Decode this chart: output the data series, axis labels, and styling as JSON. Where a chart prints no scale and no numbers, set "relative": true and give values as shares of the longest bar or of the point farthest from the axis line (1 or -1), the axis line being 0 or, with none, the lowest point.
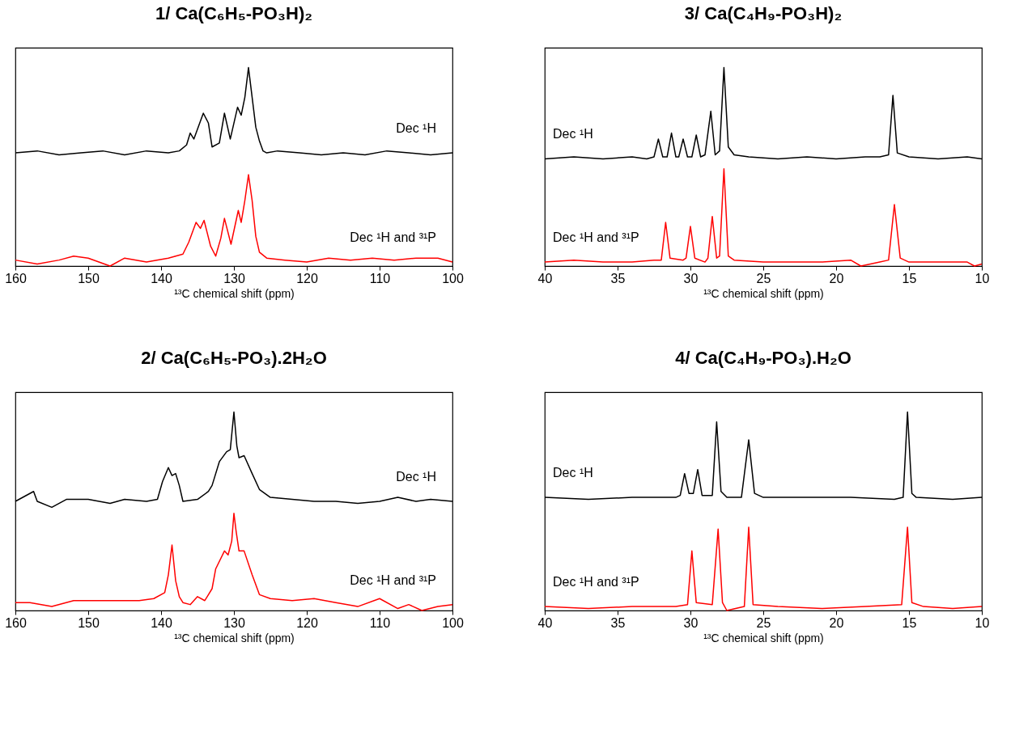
{
  "chart_data": [
    {
      "type": "line",
      "title": "1/ Ca(C₆H₅-PO₃H)₂",
      "xlabel": "¹³C chemical shift (ppm)",
      "xlim": [
        160,
        100
      ],
      "xticks": [
        160,
        150,
        140,
        130,
        120,
        110,
        100
      ],
      "relative": true,
      "series": [
        {
          "name": "Dec ¹H",
          "color": "#000000",
          "x": [
            160,
            157,
            154,
            151,
            148,
            145,
            142,
            139,
            137.5,
            136.5,
            136,
            135.5,
            134.2,
            133.5,
            133,
            132,
            131.3,
            130.5,
            129.5,
            129,
            128.5,
            128,
            127.5,
            127,
            126.5,
            126,
            125.5,
            124,
            121,
            118,
            115,
            112,
            109,
            106,
            103,
            100
          ],
          "values": [
            0.57,
            0.58,
            0.56,
            0.57,
            0.58,
            0.56,
            0.58,
            0.57,
            0.58,
            0.61,
            0.67,
            0.64,
            0.77,
            0.72,
            0.6,
            0.62,
            0.77,
            0.64,
            0.8,
            0.76,
            0.85,
            1.0,
            0.85,
            0.7,
            0.63,
            0.58,
            0.57,
            0.58,
            0.57,
            0.56,
            0.57,
            0.56,
            0.58,
            0.57,
            0.56,
            0.57
          ]
        },
        {
          "name": "Dec ¹H and ³¹P",
          "color": "#ff0000",
          "x": [
            160,
            157,
            154,
            152,
            150,
            147,
            145,
            142,
            139,
            137,
            136.2,
            135.2,
            134.6,
            134.1,
            133.2,
            132.5,
            131.8,
            131.3,
            130.4,
            129.4,
            129,
            128.5,
            128,
            127.5,
            127,
            126.5,
            125.5,
            123,
            120,
            117,
            114,
            111,
            108,
            105,
            102,
            100
          ],
          "values": [
            0.03,
            0.01,
            0.03,
            0.05,
            0.04,
            0.0,
            0.04,
            0.02,
            0.04,
            0.06,
            0.12,
            0.22,
            0.19,
            0.23,
            0.1,
            0.05,
            0.14,
            0.24,
            0.11,
            0.28,
            0.22,
            0.33,
            0.46,
            0.33,
            0.15,
            0.07,
            0.04,
            0.03,
            0.02,
            0.04,
            0.03,
            0.04,
            0.03,
            0.04,
            0.04,
            0.02
          ]
        }
      ]
    },
    {
      "type": "line",
      "title": "3/ Ca(C₄H₉-PO₃H)₂",
      "xlabel": "¹³C chemical shift (ppm)",
      "xlim": [
        40,
        10
      ],
      "xticks": [
        40,
        35,
        30,
        25,
        20,
        15,
        10
      ],
      "relative": true,
      "series": [
        {
          "name": "Dec ¹H",
          "color": "#000000",
          "x": [
            40,
            38,
            36,
            34,
            33,
            32.5,
            32.2,
            31.9,
            31.6,
            31.3,
            31.0,
            30.8,
            30.5,
            30.2,
            29.9,
            29.6,
            29.3,
            29.0,
            28.6,
            28.3,
            28.0,
            27.7,
            27.4,
            27.0,
            26,
            24,
            22,
            20,
            18,
            17,
            16.4,
            16.1,
            15.8,
            15,
            13,
            11,
            10
          ],
          "values": [
            0.54,
            0.55,
            0.54,
            0.55,
            0.54,
            0.55,
            0.64,
            0.55,
            0.55,
            0.67,
            0.55,
            0.55,
            0.64,
            0.55,
            0.55,
            0.66,
            0.55,
            0.56,
            0.78,
            0.56,
            0.58,
            1.0,
            0.6,
            0.56,
            0.55,
            0.54,
            0.55,
            0.54,
            0.55,
            0.55,
            0.56,
            0.86,
            0.57,
            0.55,
            0.54,
            0.55,
            0.54
          ]
        },
        {
          "name": "Dec ¹H and ³¹P",
          "color": "#ff0000",
          "x": [
            40,
            38,
            36,
            34,
            32.5,
            32.0,
            31.7,
            31.4,
            30.5,
            30.3,
            30.0,
            29.7,
            29.0,
            28.8,
            28.5,
            28.2,
            28.0,
            27.7,
            27.4,
            27.0,
            25,
            23,
            21,
            19,
            18.3,
            17,
            16.4,
            16.0,
            15.6,
            15,
            13,
            11,
            10.5,
            10
          ],
          "values": [
            0.02,
            0.03,
            0.02,
            0.02,
            0.03,
            0.03,
            0.22,
            0.04,
            0.03,
            0.04,
            0.2,
            0.04,
            0.02,
            0.04,
            0.25,
            0.04,
            0.05,
            0.49,
            0.05,
            0.03,
            0.02,
            0.02,
            0.02,
            0.03,
            0.0,
            0.02,
            0.03,
            0.31,
            0.04,
            0.02,
            0.02,
            0.02,
            0.0,
            0.01
          ]
        }
      ]
    },
    {
      "type": "line",
      "title": "2/ Ca(C₆H₅-PO₃).2H₂O",
      "xlabel": "¹³C chemical shift (ppm)",
      "xlim": [
        160,
        100
      ],
      "xticks": [
        160,
        150,
        140,
        130,
        120,
        110,
        100
      ],
      "relative": true,
      "series": [
        {
          "name": "Dec ¹H",
          "color": "#000000",
          "x": [
            160,
            157.5,
            157,
            155,
            153,
            150,
            147,
            145,
            142,
            140.5,
            139.8,
            139,
            138.5,
            138,
            137.5,
            137,
            135,
            133.5,
            133,
            132,
            131,
            130.5,
            130,
            129.6,
            129.3,
            128.6,
            127.5,
            126.5,
            125,
            122,
            119,
            116,
            113,
            110,
            107.5,
            105,
            103,
            100
          ],
          "values": [
            0.55,
            0.6,
            0.55,
            0.52,
            0.56,
            0.56,
            0.54,
            0.56,
            0.55,
            0.56,
            0.65,
            0.72,
            0.68,
            0.69,
            0.63,
            0.55,
            0.56,
            0.6,
            0.63,
            0.75,
            0.8,
            0.81,
            1.0,
            0.83,
            0.77,
            0.78,
            0.69,
            0.61,
            0.57,
            0.56,
            0.55,
            0.55,
            0.54,
            0.55,
            0.57,
            0.55,
            0.56,
            0.55
          ]
        },
        {
          "name": "Dec ¹H and ³¹P",
          "color": "#ff0000",
          "x": [
            160,
            158,
            155,
            152,
            149,
            146,
            143,
            141,
            139.5,
            139,
            138.5,
            138,
            137.5,
            137,
            136,
            135,
            134,
            133,
            132.5,
            131.3,
            130.8,
            130.3,
            130,
            129.7,
            129.3,
            128.6,
            127.5,
            126.5,
            125,
            122,
            119,
            116,
            113,
            110,
            107.5,
            106,
            104.2,
            102,
            100
          ],
          "values": [
            0.04,
            0.04,
            0.02,
            0.05,
            0.05,
            0.05,
            0.05,
            0.06,
            0.09,
            0.18,
            0.33,
            0.15,
            0.07,
            0.04,
            0.03,
            0.07,
            0.05,
            0.11,
            0.21,
            0.3,
            0.28,
            0.35,
            0.49,
            0.4,
            0.3,
            0.3,
            0.18,
            0.08,
            0.06,
            0.05,
            0.06,
            0.04,
            0.02,
            0.06,
            0.01,
            0.03,
            0.0,
            0.02,
            0.03
          ]
        }
      ]
    },
    {
      "type": "line",
      "title": "4/ Ca(C₄H₉-PO₃).H₂O",
      "xlabel": "¹³C chemical shift (ppm)",
      "xlim": [
        40,
        10
      ],
      "xticks": [
        40,
        35,
        30,
        25,
        20,
        15,
        10
      ],
      "relative": true,
      "series": [
        {
          "name": "Dec ¹H",
          "color": "#000000",
          "x": [
            40,
            37,
            34,
            31,
            30.7,
            30.4,
            30.1,
            29.8,
            29.5,
            29.2,
            28.5,
            28.2,
            27.9,
            27.5,
            26.5,
            26.0,
            25.6,
            25,
            22,
            19,
            16,
            15.4,
            15.1,
            14.8,
            14.5,
            12,
            10
          ],
          "values": [
            0.57,
            0.56,
            0.57,
            0.57,
            0.58,
            0.69,
            0.59,
            0.59,
            0.71,
            0.58,
            0.58,
            0.95,
            0.6,
            0.57,
            0.57,
            0.86,
            0.59,
            0.57,
            0.57,
            0.57,
            0.56,
            0.57,
            1.0,
            0.59,
            0.57,
            0.56,
            0.57
          ]
        },
        {
          "name": "Dec ¹H and ³¹P",
          "color": "#ff0000",
          "x": [
            40,
            37,
            34,
            31,
            30.2,
            29.9,
            29.6,
            28.5,
            28.1,
            27.8,
            27.5,
            26.3,
            26.0,
            25.7,
            24,
            21,
            18,
            15.5,
            15.1,
            14.8,
            14,
            12,
            10
          ],
          "values": [
            0.02,
            0.01,
            0.02,
            0.02,
            0.03,
            0.3,
            0.04,
            0.03,
            0.41,
            0.04,
            0.0,
            0.02,
            0.42,
            0.03,
            0.02,
            0.01,
            0.02,
            0.03,
            0.42,
            0.04,
            0.02,
            0.01,
            0.02
          ]
        }
      ]
    }
  ]
}
